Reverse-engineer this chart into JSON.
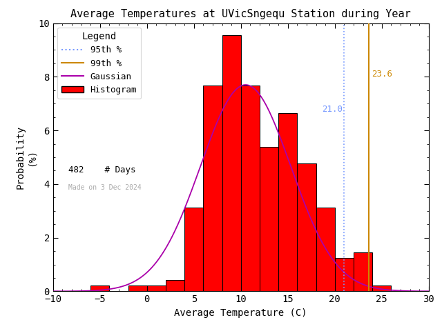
{
  "title": "Average Temperatures at UVicSngequ Station during Year",
  "xlabel": "Average Temperature (C)",
  "ylabel": "Probability\n(%)",
  "xlim": [
    -10,
    30
  ],
  "ylim": [
    0,
    10
  ],
  "xticks": [
    -10,
    -5,
    0,
    5,
    10,
    15,
    20,
    25,
    30
  ],
  "yticks": [
    0,
    2,
    4,
    6,
    8,
    10
  ],
  "bin_left_edges": [
    -10,
    -8,
    -6,
    -4,
    -2,
    0,
    2,
    4,
    6,
    8,
    10,
    12,
    14,
    16,
    18,
    20,
    22,
    24,
    26,
    28
  ],
  "bin_heights": [
    0.0,
    0.0,
    0.21,
    0.0,
    0.21,
    0.21,
    0.41,
    3.11,
    7.68,
    9.54,
    7.68,
    5.39,
    6.64,
    4.77,
    3.11,
    1.24,
    1.45,
    0.21,
    0.0,
    0.0
  ],
  "bin_width": 2,
  "gaussian_mean": 10.5,
  "gaussian_std": 4.8,
  "gaussian_scale": 7.7,
  "pct_95": 21.0,
  "pct_99": 23.6,
  "pct95_label": "21.0",
  "pct99_label": "23.6",
  "n_days": 482,
  "date_label": "Made on 3 Dec 2024",
  "bar_color": "#ff0000",
  "bar_edgecolor": "#000000",
  "gaussian_color": "#aa00aa",
  "pct95_color": "#7799ff",
  "pct99_color": "#cc8800",
  "title_color": "#000000",
  "date_color": "#aaaaaa",
  "background_color": "#ffffff",
  "legend_title": "Legend",
  "legend_95_label": "95th %",
  "legend_99_label": "99th %",
  "legend_gaussian_label": "Gaussian",
  "legend_hist_label": "Histogram",
  "ndays_label": "482    # Days"
}
